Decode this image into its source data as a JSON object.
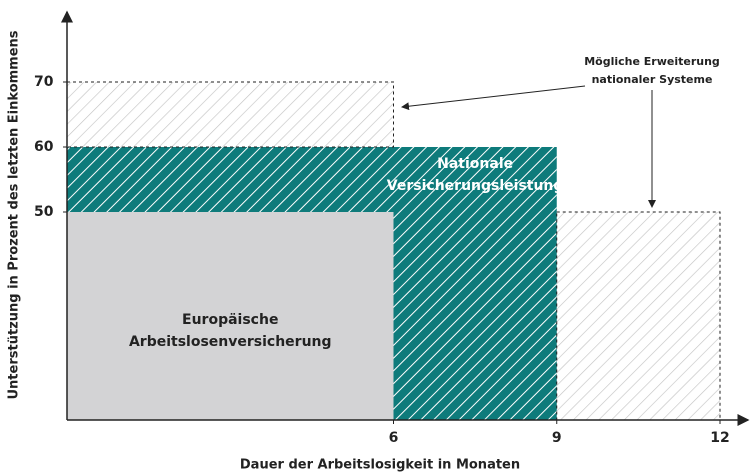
{
  "chart_data": {
    "type": "block",
    "xlabel": "Dauer der Arbeitslosigkeit in Monaten",
    "ylabel": "Unterstützung in  Prozent des letzten Einkommens",
    "xlim": [
      0,
      12
    ],
    "xticks": [
      6,
      9,
      12
    ],
    "ylim": [
      18,
      80
    ],
    "yticks": [
      50,
      60,
      70
    ],
    "regions": [
      {
        "label_lines": [
          "Europäische",
          "Arbeitslosenversicherung"
        ],
        "style": "solid",
        "color": "#d3d3d5",
        "blocks": [
          {
            "x": [
              0,
              6
            ],
            "value": 50
          }
        ]
      },
      {
        "label_lines": [
          "Nationale",
          "Versicherungsleistung"
        ],
        "style": "hatch",
        "color": "#0e7b7b",
        "blocks": [
          {
            "x": [
              0,
              6
            ],
            "base": 50,
            "value": 60
          },
          {
            "x": [
              6,
              9
            ],
            "value": 60
          }
        ]
      },
      {
        "style": "dashed-hatch",
        "color": "#b8b8b8",
        "blocks": [
          {
            "x": [
              0,
              6
            ],
            "base": 60,
            "value": 70
          },
          {
            "x": [
              9,
              12
            ],
            "value": 50
          }
        ]
      }
    ],
    "annotation": [
      "Mögliche Erweiterung",
      "nationaler Systeme"
    ]
  }
}
